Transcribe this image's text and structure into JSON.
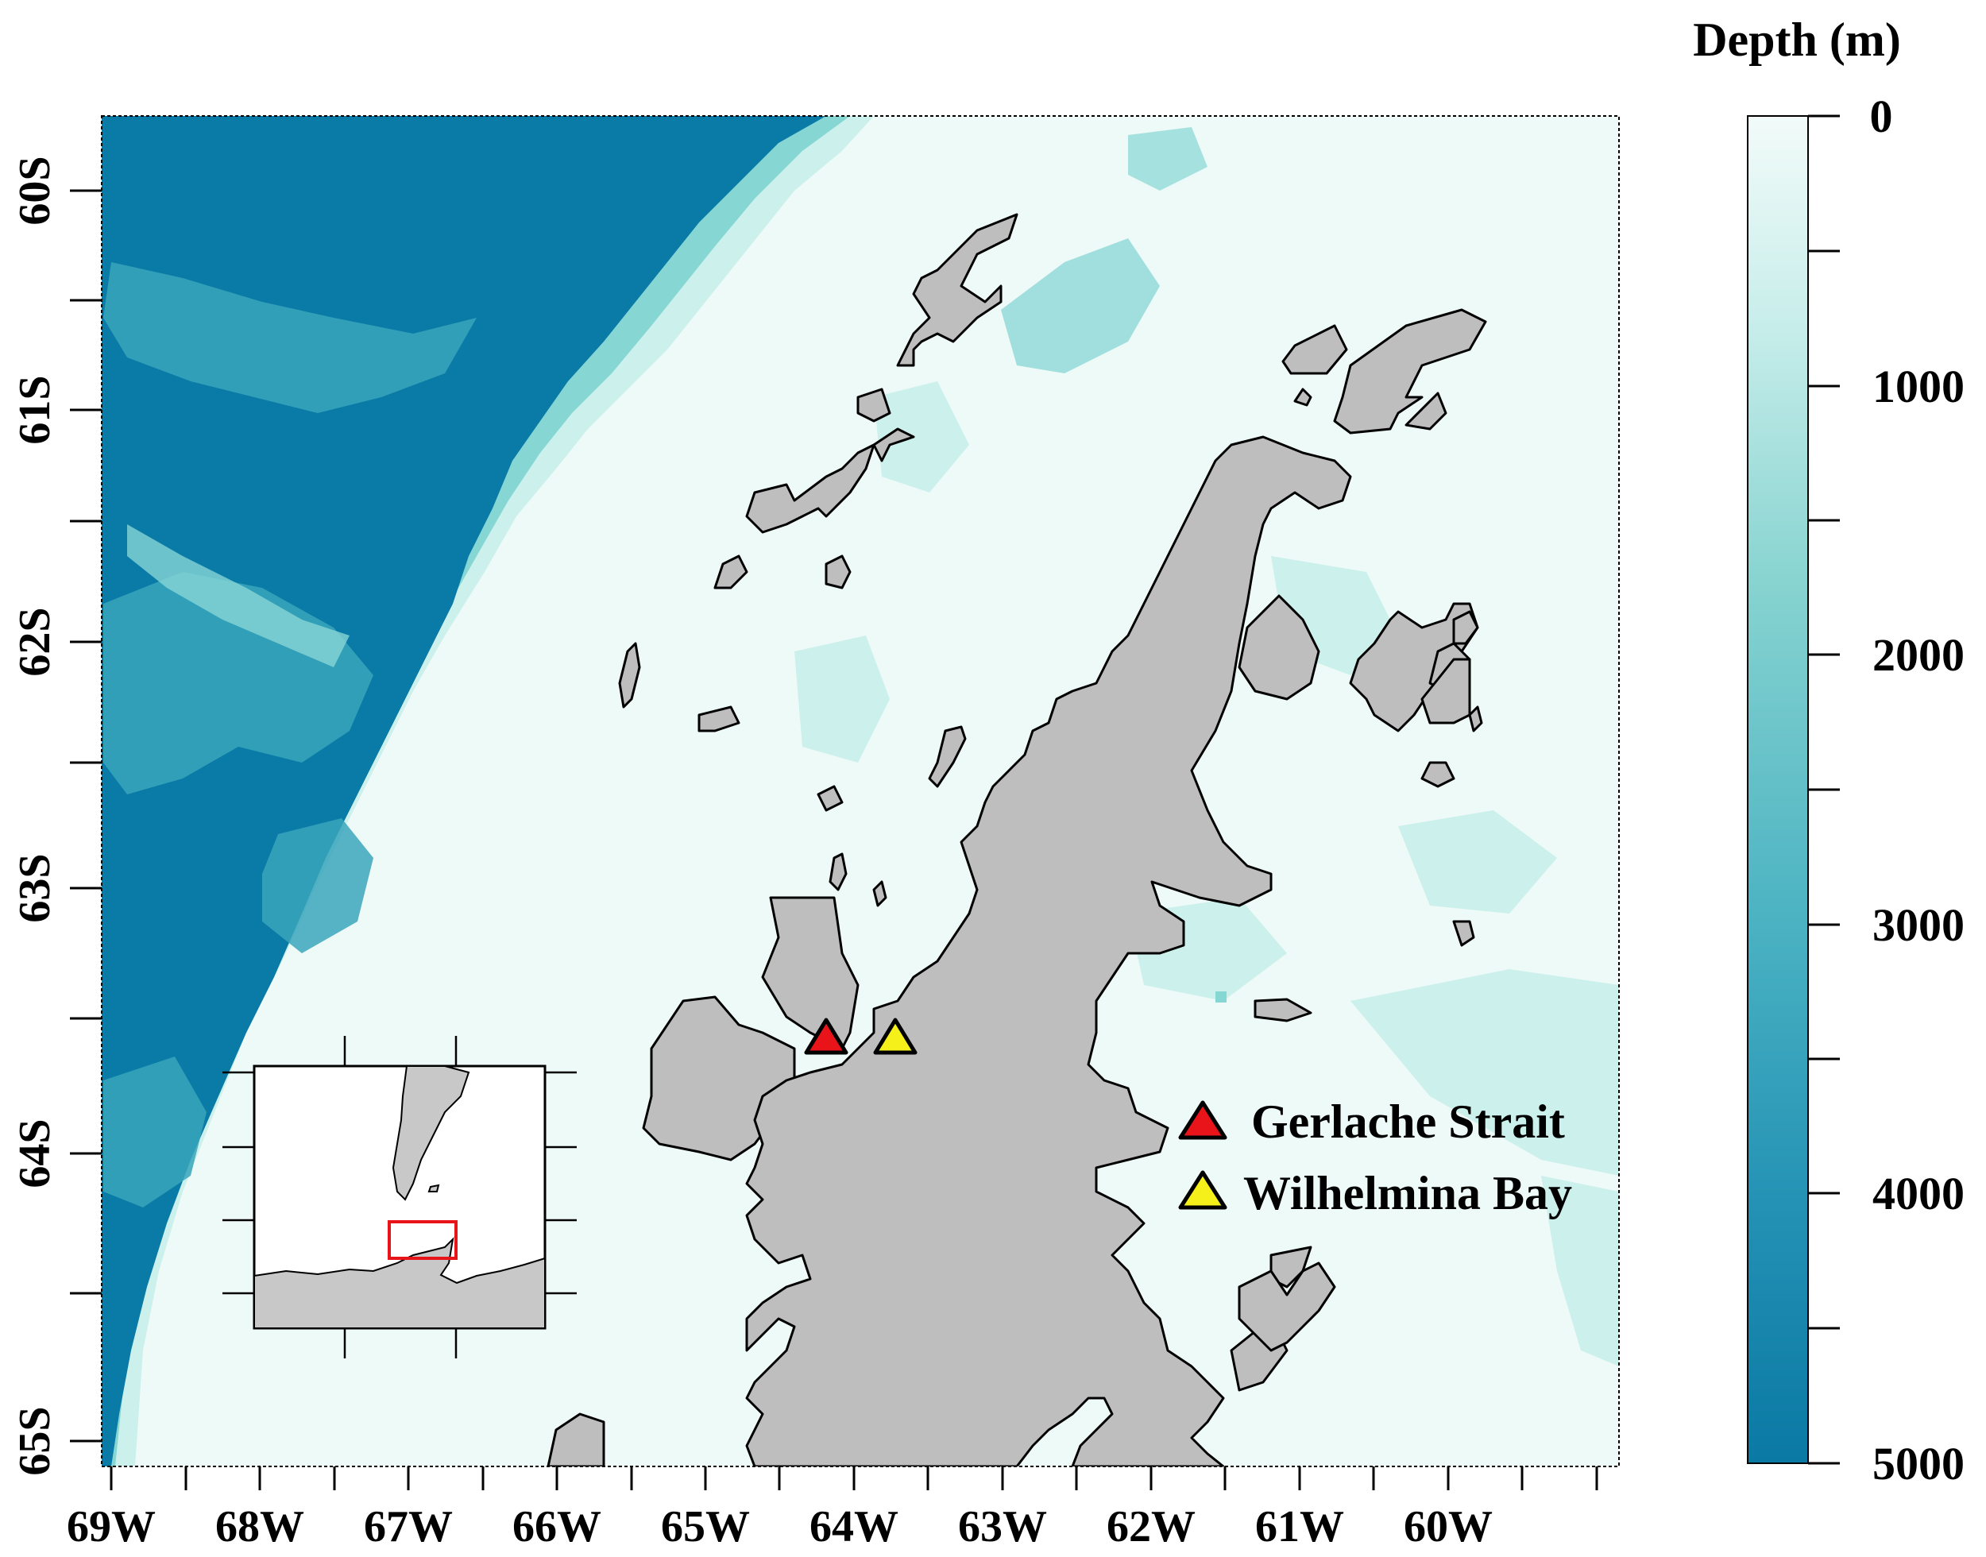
{
  "map": {
    "longitude_ticks": [
      "69W",
      "68W",
      "67W",
      "66W",
      "65W",
      "64W",
      "63W",
      "62W",
      "61W",
      "60W"
    ],
    "latitude_ticks": [
      "60S",
      "61S",
      "62S",
      "63S",
      "64S",
      "65S"
    ],
    "legend": [
      {
        "label": "Gerlache Strait",
        "marker": "triangle",
        "color": "#e8141a"
      },
      {
        "label": "Wilhelmina Bay",
        "marker": "triangle",
        "color": "#f5ef1a"
      }
    ],
    "colors": {
      "deep": "#0a7aa6",
      "mid": "#3aa6bc",
      "shelf": "#86d6d4",
      "shallow": "#ccf0ec",
      "surface": "#eefaf7",
      "land": "#bebebe"
    }
  },
  "colorbar": {
    "title": "Depth (m)",
    "ticks": [
      "0",
      "1000",
      "2000",
      "3000",
      "4000",
      "5000"
    ]
  },
  "inset": {
    "highlight_color": "#e8141a"
  }
}
